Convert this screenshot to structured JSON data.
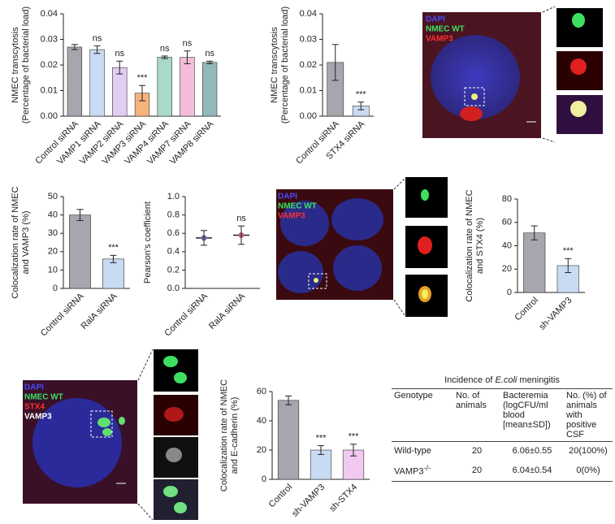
{
  "chart_data": [
    {
      "type": "bar",
      "y_label": [
        "NMEC transcytosis",
        "(Percentage of bacterial load)"
      ],
      "categories": [
        "Control siRNA",
        "VAMP1 siRNA",
        "VAMP2 siRNA",
        "VAMP3 siRNA",
        "VAMP4 siRNA",
        "VAMP7 siRNA",
        "VAMP8 siRNA"
      ],
      "values": [
        0.027,
        0.026,
        0.019,
        0.009,
        0.023,
        0.023,
        0.021
      ],
      "errors": [
        0.001,
        0.0015,
        0.0025,
        0.003,
        0.0005,
        0.0025,
        0.0005
      ],
      "colors": [
        "#a9a5ae",
        "#c9dbf3",
        "#e3cdf3",
        "#f6b37c",
        "#a9d9c9",
        "#f5bcd9",
        "#93b8ba"
      ],
      "significance": [
        null,
        "ns",
        "ns",
        "***",
        "ns",
        "ns",
        "ns"
      ],
      "ylim": [
        0,
        0.04
      ],
      "yticks": [
        {
          "value": 0,
          "label": "0.00"
        },
        0.01,
        0.02,
        0.03,
        {
          "value": 0.04,
          "label": "0.04"
        }
      ]
    },
    {
      "type": "bar",
      "y_label": [
        "NMEC transcytosis",
        "(Percentage of bacterial load)"
      ],
      "categories": [
        "Control siRNA",
        "STX4 siRNA"
      ],
      "values": [
        0.021,
        0.004
      ],
      "errors": [
        0.007,
        0.0015
      ],
      "colors": [
        "#a9a5ae",
        "#c9dbf3"
      ],
      "significance": [
        null,
        "***"
      ],
      "ylim": [
        0,
        0.04
      ],
      "yticks": [
        {
          "value": 0,
          "label": "0.00"
        },
        0.01,
        0.02,
        0.03,
        {
          "value": 0.04,
          "label": "0.04"
        }
      ]
    },
    {
      "type": "bar",
      "y_label": [
        "Colocalization rate of NMEC",
        "and VAMP3 (%)"
      ],
      "categories": [
        "Control siRNA",
        "RalA siRNA"
      ],
      "values": [
        40,
        16
      ],
      "errors": [
        3,
        2
      ],
      "colors": [
        "#a9a5ae",
        "#c9dbf3"
      ],
      "significance": [
        null,
        "***"
      ],
      "ylim": [
        0,
        50
      ],
      "yticks": [
        0,
        10,
        20,
        30,
        40,
        50
      ]
    },
    {
      "type": "dot",
      "y_label": [
        "Pearson's coefficient"
      ],
      "categories": [
        "Control siRNA",
        "RalA siRNA"
      ],
      "values": [
        0.55,
        0.58
      ],
      "errors": [
        0.08,
        0.1
      ],
      "colors": [
        "#6a6aa8",
        "#c45a8a"
      ],
      "significance": [
        null,
        "ns"
      ],
      "ylim": [
        0,
        1.0
      ],
      "yticks": [
        {
          "value": 0,
          "label": "0.0"
        },
        0.2,
        0.4,
        0.6,
        0.8,
        {
          "value": 1.0,
          "label": "1.0"
        }
      ]
    },
    {
      "type": "bar",
      "y_label": [
        "Colocalization rate of NMEC",
        "and STX4 (%)"
      ],
      "categories": [
        "Control",
        "sh-VAMP3"
      ],
      "values": [
        51,
        23
      ],
      "errors": [
        6,
        6
      ],
      "colors": [
        "#a9a5ae",
        "#c9dbf3"
      ],
      "significance": [
        null,
        "***"
      ],
      "ylim": [
        0,
        80
      ],
      "yticks": [
        0,
        20,
        40,
        60,
        80
      ]
    },
    {
      "type": "bar",
      "y_label": [
        "Colocalization rate of NMEC",
        "and E-cadherin (%)"
      ],
      "categories": [
        "Control",
        "sh-VAMP3",
        "sh-STX4"
      ],
      "values": [
        54,
        20,
        20
      ],
      "errors": [
        3,
        3,
        4
      ],
      "colors": [
        "#a9a5ae",
        "#c9dbf3",
        "#f1c9f1"
      ],
      "significance": [
        null,
        "***",
        "***"
      ],
      "ylim": [
        0,
        60
      ],
      "yticks": [
        0,
        20,
        40,
        60
      ]
    }
  ],
  "images": [
    {
      "labels": [
        "DAPI",
        "NMEC WT",
        "VAMP3"
      ]
    },
    {
      "labels": [
        "DAPI",
        "NMEC WT",
        "VAMP3"
      ]
    },
    {
      "labels": [
        "DAPI",
        "NMEC WT",
        "STX4",
        "VAMP3"
      ]
    }
  ],
  "table": {
    "title": [
      "Incidence of ",
      "E.coli",
      " meningitis"
    ],
    "header": [
      "Genotype",
      "No. of animals",
      "Bacteremia (logCFU/ml blood [mean±SD])",
      "No. (%) of animals with positive CSF"
    ],
    "rows": [
      [
        {
          "text": "Wild-type",
          "sup": null
        },
        "20",
        "6.06±0.55",
        "20(100%)"
      ],
      [
        {
          "text": "VAMP3",
          "sup": "-/-"
        },
        "20",
        "6.04±0.54",
        "0(0%)"
      ]
    ]
  }
}
